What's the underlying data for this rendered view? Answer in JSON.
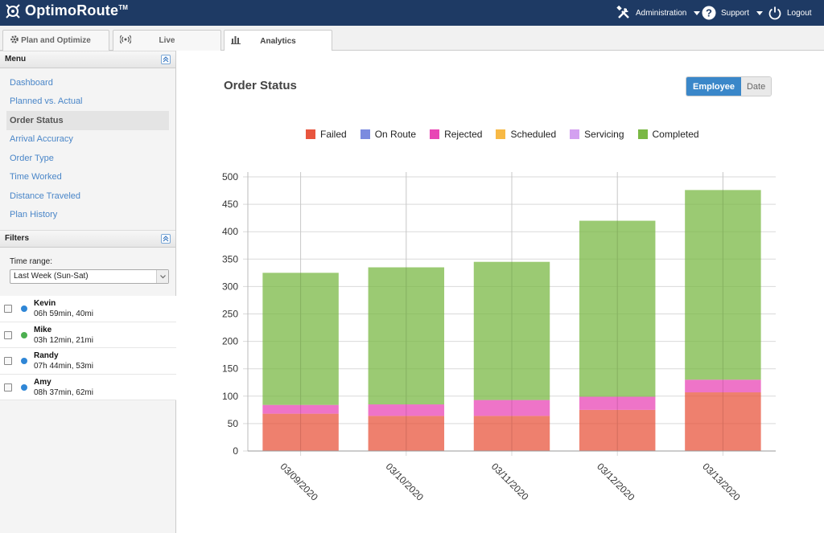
{
  "header": {
    "logo_text": "OptimoRoute",
    "logo_tm": "TM",
    "admin_label": "Administration",
    "support_label": "Support",
    "logout_label": "Logout"
  },
  "tabs": [
    {
      "label": "Plan and Optimize",
      "icon": "gear-icon"
    },
    {
      "label": "Live",
      "icon": "broadcast-icon"
    },
    {
      "label": "Analytics",
      "icon": "bar-chart-icon"
    }
  ],
  "sidebar": {
    "menu_title": "Menu",
    "items": [
      {
        "label": "Dashboard"
      },
      {
        "label": "Planned vs. Actual"
      },
      {
        "label": "Order Status"
      },
      {
        "label": "Arrival Accuracy"
      },
      {
        "label": "Order Type"
      },
      {
        "label": "Time Worked"
      },
      {
        "label": "Distance Traveled"
      },
      {
        "label": "Plan History"
      }
    ],
    "filters_title": "Filters",
    "time_range_label": "Time range:",
    "time_range_value": "Last Week (Sun-Sat)",
    "employees": [
      {
        "name": "Kevin",
        "stats": "06h 59min, 40mi",
        "color": "#2f86d6"
      },
      {
        "name": "Mike",
        "stats": "03h 12min, 21mi",
        "color": "#4caf50"
      },
      {
        "name": "Randy",
        "stats": "07h 44min, 53mi",
        "color": "#2f86d6"
      },
      {
        "name": "Amy",
        "stats": "08h 37min, 62mi",
        "color": "#2f86d6"
      }
    ]
  },
  "main": {
    "title": "Order Status",
    "toggle_employee": "Employee",
    "toggle_date": "Date"
  },
  "chart_data": {
    "type": "bar",
    "stacked": true,
    "categories": [
      "03/09/2020",
      "03/10/2020",
      "03/11/2020",
      "03/12/2020",
      "03/13/2020"
    ],
    "series": [
      {
        "name": "Failed",
        "color": "#e8553e",
        "values": [
          68,
          64,
          64,
          75,
          107
        ]
      },
      {
        "name": "On Route",
        "color": "#7b8bdf",
        "values": [
          0,
          0,
          0,
          0,
          0
        ]
      },
      {
        "name": "Rejected",
        "color": "#e845b5",
        "values": [
          16,
          21,
          29,
          24,
          23
        ]
      },
      {
        "name": "Scheduled",
        "color": "#f7b945",
        "values": [
          0,
          0,
          0,
          0,
          0
        ]
      },
      {
        "name": "Servicing",
        "color": "#d3a0f0",
        "values": [
          0,
          0,
          0,
          0,
          0
        ]
      },
      {
        "name": "Completed",
        "color": "#7ab844",
        "values": [
          241,
          250,
          252,
          321,
          346
        ]
      }
    ],
    "ylim": [
      0,
      500
    ],
    "yticks": [
      0,
      50,
      100,
      150,
      200,
      250,
      300,
      350,
      400,
      450,
      500
    ],
    "grid": true,
    "legend_position": "top"
  }
}
